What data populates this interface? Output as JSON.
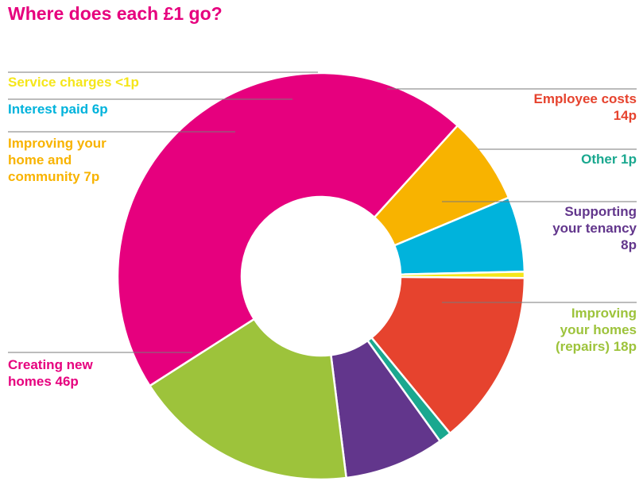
{
  "chart_data": {
    "type": "pie",
    "title": "Where does each £1 go?",
    "unit": "p",
    "slices": [
      {
        "label_lines": [
          "Employee costs",
          "14p"
        ],
        "value": 14,
        "color": "#e6432e"
      },
      {
        "label_lines": [
          "Other 1p"
        ],
        "value": 1,
        "color": "#1aa88f"
      },
      {
        "label_lines": [
          "Supporting",
          "your tenancy",
          "8p"
        ],
        "value": 8,
        "color": "#62368c"
      },
      {
        "label_lines": [
          "Improving",
          "your homes",
          "(repairs) 18p"
        ],
        "value": 18,
        "color": "#9dc33b"
      },
      {
        "label_lines": [
          "Creating new",
          "homes 46p"
        ],
        "value": 46,
        "color": "#e6007e"
      },
      {
        "label_lines": [
          "Improving your",
          "home and",
          "community 7p"
        ],
        "value": 7,
        "color": "#f8b300"
      },
      {
        "label_lines": [
          "Interest paid 6p"
        ],
        "value": 6,
        "color": "#00b3dc"
      },
      {
        "label_lines": [
          "Service charges <1p"
        ],
        "value": 0.5,
        "color": "#f5e61a"
      }
    ]
  }
}
